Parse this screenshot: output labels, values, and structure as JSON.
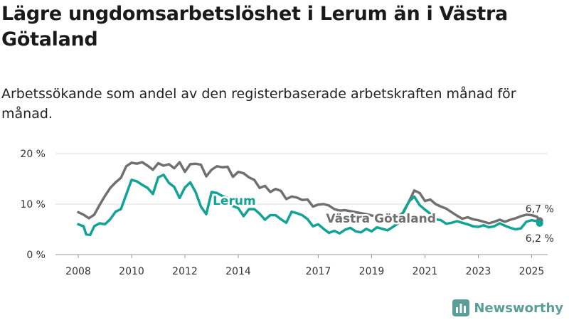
{
  "title": "Lägre ungdomsarbetslöshet i Lerum än i Västra Götaland",
  "subtitle": "Arbetssökande som andel av den registerbaserade arbetskraften månad för månad.",
  "brand": {
    "name": "Newsworthy",
    "icon": "bar-chart-logo-icon"
  },
  "colors": {
    "lerum": "#11a394",
    "vgr": "#707070",
    "grid": "#dcdcdc"
  },
  "chart_data": {
    "type": "line",
    "ylim": [
      0,
      20
    ],
    "y_ticks": [
      0,
      10,
      20
    ],
    "y_tick_labels": [
      "0 %",
      "10 %",
      "20 %"
    ],
    "x_ticks": [
      2008,
      2010,
      2012,
      2014,
      2017,
      2019,
      2021,
      2023,
      2025
    ],
    "x_tick_labels": [
      "2008",
      "2010",
      "2012",
      "2014",
      "2017",
      "2019",
      "2021",
      "2023",
      "2025"
    ],
    "xlim": [
      2007.5,
      2025.8
    ],
    "series": [
      {
        "name": "Västra Götaland",
        "color": "#707070",
        "end_label": "6,7 %",
        "points": [
          [
            2008.0,
            8.4
          ],
          [
            2008.2,
            7.9
          ],
          [
            2008.4,
            7.2
          ],
          [
            2008.6,
            7.9
          ],
          [
            2008.8,
            9.8
          ],
          [
            2009.0,
            11.6
          ],
          [
            2009.2,
            13.2
          ],
          [
            2009.4,
            14.3
          ],
          [
            2009.6,
            15.2
          ],
          [
            2009.8,
            17.5
          ],
          [
            2010.0,
            18.2
          ],
          [
            2010.2,
            18.0
          ],
          [
            2010.4,
            18.3
          ],
          [
            2010.6,
            17.6
          ],
          [
            2010.8,
            16.8
          ],
          [
            2011.0,
            18.1
          ],
          [
            2011.2,
            17.6
          ],
          [
            2011.4,
            17.9
          ],
          [
            2011.6,
            17.1
          ],
          [
            2011.8,
            18.3
          ],
          [
            2012.0,
            16.4
          ],
          [
            2012.2,
            17.9
          ],
          [
            2012.4,
            18.0
          ],
          [
            2012.6,
            17.8
          ],
          [
            2012.8,
            15.5
          ],
          [
            2013.0,
            16.8
          ],
          [
            2013.2,
            17.5
          ],
          [
            2013.4,
            17.3
          ],
          [
            2013.6,
            17.4
          ],
          [
            2013.8,
            15.4
          ],
          [
            2014.0,
            16.4
          ],
          [
            2014.2,
            16.1
          ],
          [
            2014.4,
            15.3
          ],
          [
            2014.6,
            14.8
          ],
          [
            2014.8,
            13.2
          ],
          [
            2015.0,
            13.6
          ],
          [
            2015.2,
            12.4
          ],
          [
            2015.4,
            13.0
          ],
          [
            2015.6,
            12.6
          ],
          [
            2015.8,
            11.0
          ],
          [
            2016.0,
            11.5
          ],
          [
            2016.2,
            11.3
          ],
          [
            2016.4,
            10.8
          ],
          [
            2016.6,
            10.9
          ],
          [
            2016.8,
            9.5
          ],
          [
            2017.0,
            9.9
          ],
          [
            2017.2,
            10.0
          ],
          [
            2017.4,
            9.7
          ],
          [
            2017.6,
            9.0
          ],
          [
            2017.8,
            8.7
          ],
          [
            2018.0,
            8.8
          ],
          [
            2018.4,
            8.4
          ],
          [
            2018.8,
            8.0
          ],
          [
            2019.2,
            7.5
          ],
          [
            2019.6,
            7.2
          ],
          [
            2020.0,
            7.6
          ],
          [
            2020.2,
            8.4
          ],
          [
            2020.4,
            10.5
          ],
          [
            2020.6,
            12.7
          ],
          [
            2020.8,
            12.2
          ],
          [
            2021.0,
            10.6
          ],
          [
            2021.2,
            10.9
          ],
          [
            2021.4,
            10.0
          ],
          [
            2021.6,
            9.5
          ],
          [
            2021.8,
            9.1
          ],
          [
            2022.0,
            8.4
          ],
          [
            2022.2,
            7.7
          ],
          [
            2022.4,
            7.1
          ],
          [
            2022.6,
            7.4
          ],
          [
            2022.8,
            7.0
          ],
          [
            2023.0,
            6.8
          ],
          [
            2023.2,
            6.5
          ],
          [
            2023.4,
            6.2
          ],
          [
            2023.6,
            6.5
          ],
          [
            2023.8,
            6.9
          ],
          [
            2024.0,
            6.5
          ],
          [
            2024.2,
            6.9
          ],
          [
            2024.4,
            7.2
          ],
          [
            2024.6,
            7.6
          ],
          [
            2024.8,
            7.9
          ],
          [
            2025.0,
            7.8
          ],
          [
            2025.2,
            7.5
          ],
          [
            2025.3,
            6.7
          ]
        ]
      },
      {
        "name": "Lerum",
        "color": "#11a394",
        "end_label": "6,2 %",
        "points": [
          [
            2008.0,
            6.0
          ],
          [
            2008.2,
            5.6
          ],
          [
            2008.3,
            4.0
          ],
          [
            2008.45,
            3.9
          ],
          [
            2008.6,
            5.6
          ],
          [
            2008.8,
            6.2
          ],
          [
            2009.0,
            6.0
          ],
          [
            2009.2,
            7.0
          ],
          [
            2009.4,
            8.5
          ],
          [
            2009.6,
            9.0
          ],
          [
            2009.8,
            11.9
          ],
          [
            2010.0,
            14.8
          ],
          [
            2010.2,
            14.5
          ],
          [
            2010.4,
            13.8
          ],
          [
            2010.6,
            13.2
          ],
          [
            2010.8,
            12.0
          ],
          [
            2011.0,
            15.3
          ],
          [
            2011.2,
            15.8
          ],
          [
            2011.4,
            14.2
          ],
          [
            2011.6,
            13.4
          ],
          [
            2011.8,
            11.2
          ],
          [
            2012.0,
            13.3
          ],
          [
            2012.2,
            14.3
          ],
          [
            2012.4,
            12.4
          ],
          [
            2012.6,
            9.5
          ],
          [
            2012.8,
            8.0
          ],
          [
            2013.0,
            12.4
          ],
          [
            2013.2,
            12.2
          ],
          [
            2013.4,
            11.6
          ],
          [
            2013.6,
            11.2
          ],
          [
            2013.8,
            9.6
          ],
          [
            2014.0,
            9.2
          ],
          [
            2014.2,
            7.6
          ],
          [
            2014.4,
            9.0
          ],
          [
            2014.6,
            9.0
          ],
          [
            2014.8,
            8.1
          ],
          [
            2015.0,
            6.9
          ],
          [
            2015.2,
            7.8
          ],
          [
            2015.4,
            7.8
          ],
          [
            2015.6,
            7.0
          ],
          [
            2015.8,
            6.3
          ],
          [
            2016.0,
            8.5
          ],
          [
            2016.2,
            8.2
          ],
          [
            2016.4,
            7.8
          ],
          [
            2016.6,
            7.0
          ],
          [
            2016.8,
            5.6
          ],
          [
            2017.0,
            6.0
          ],
          [
            2017.2,
            5.1
          ],
          [
            2017.4,
            4.3
          ],
          [
            2017.6,
            4.7
          ],
          [
            2017.8,
            4.2
          ],
          [
            2018.0,
            4.9
          ],
          [
            2018.2,
            5.3
          ],
          [
            2018.4,
            4.6
          ],
          [
            2018.6,
            4.4
          ],
          [
            2018.8,
            5.1
          ],
          [
            2019.0,
            4.6
          ],
          [
            2019.2,
            5.4
          ],
          [
            2019.4,
            5.1
          ],
          [
            2019.6,
            4.8
          ],
          [
            2019.8,
            5.5
          ],
          [
            2020.0,
            6.2
          ],
          [
            2020.2,
            8.6
          ],
          [
            2020.4,
            10.5
          ],
          [
            2020.6,
            11.5
          ],
          [
            2020.8,
            9.8
          ],
          [
            2021.0,
            8.9
          ],
          [
            2021.2,
            8.1
          ],
          [
            2021.4,
            7.0
          ],
          [
            2021.6,
            6.8
          ],
          [
            2021.8,
            6.1
          ],
          [
            2022.0,
            6.3
          ],
          [
            2022.2,
            6.6
          ],
          [
            2022.4,
            6.3
          ],
          [
            2022.6,
            6.0
          ],
          [
            2022.8,
            5.6
          ],
          [
            2023.0,
            5.5
          ],
          [
            2023.2,
            5.8
          ],
          [
            2023.4,
            5.4
          ],
          [
            2023.6,
            5.6
          ],
          [
            2023.8,
            6.2
          ],
          [
            2024.0,
            5.7
          ],
          [
            2024.2,
            5.3
          ],
          [
            2024.4,
            5.0
          ],
          [
            2024.6,
            5.2
          ],
          [
            2024.8,
            6.5
          ],
          [
            2025.0,
            6.8
          ],
          [
            2025.2,
            6.6
          ],
          [
            2025.3,
            6.2
          ]
        ]
      }
    ],
    "annotations": [
      {
        "text": "Lerum",
        "series": "Lerum",
        "x": 2013.85,
        "y": 10.7
      },
      {
        "text": "Västra Götaland",
        "series": "Västra Götaland",
        "x": 2019.35,
        "y": 7.2
      }
    ]
  }
}
